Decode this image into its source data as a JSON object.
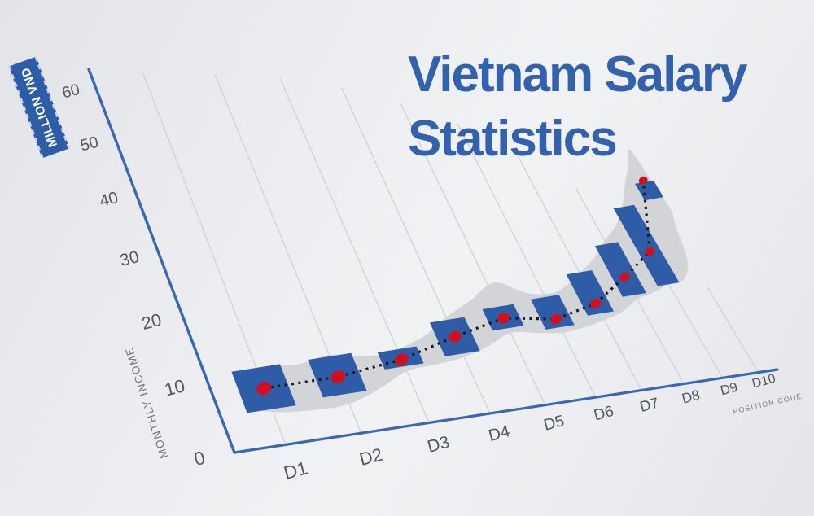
{
  "title": {
    "line1": "Vietnam Salary",
    "line2": "Statistics"
  },
  "axes": {
    "y": {
      "ribbon": "MILLION VND",
      "title": "MONTHLY INCOME"
    },
    "x": {
      "title": "POSITION CODE"
    }
  },
  "colors": {
    "background": "#eceef1",
    "title": "#3361ad",
    "axis": "#3b67b0",
    "grid": "#cfd2d6",
    "band": "#d2d4d7",
    "bar": "#2e5ca6",
    "dot": "#d2101c",
    "dotted_line": "#17191c",
    "tick_text": "#55585c",
    "ribbon_bg": "#2e5da8",
    "ribbon_text": "#ffffff",
    "axis_title_text": "#73767a"
  },
  "chart_data": {
    "type": "line",
    "title": "Vietnam Salary Statistics",
    "xlabel": "POSITION CODE",
    "ylabel": "MONTHLY INCOME",
    "unit": "MILLION VND",
    "categories": [
      "D1",
      "D2",
      "D3",
      "D4",
      "D5",
      "D6",
      "D7",
      "D8",
      "D9",
      "D10"
    ],
    "values": [
      8,
      8,
      9,
      11,
      12.5,
      11.2,
      12.5,
      15.5,
      18.5,
      29
    ],
    "range_low": [
      5,
      5.5,
      8,
      8.5,
      11,
      10,
      11,
      12.8,
      13.5,
      26
    ],
    "range_high": [
      11,
      11,
      10.5,
      13.5,
      14.2,
      14.5,
      17.2,
      20.6,
      25.6,
      28.7
    ],
    "yticks": [
      0,
      10,
      20,
      30,
      40,
      50,
      60
    ],
    "ylim": [
      0,
      63
    ],
    "grid": "vertical-per-category, 3d-perspective",
    "legend": "none",
    "band_top": [
      [
        0.8,
        9.8
      ],
      [
        1.0,
        10.9
      ],
      [
        1.55,
        10.6
      ],
      [
        2.0,
        11.2
      ],
      [
        2.55,
        10.2
      ],
      [
        3.0,
        10.5
      ],
      [
        3.55,
        11.9
      ],
      [
        4.0,
        13.9
      ],
      [
        4.55,
        15.7
      ],
      [
        5.15,
        17.7
      ],
      [
        5.7,
        15.4
      ],
      [
        6.3,
        15.0
      ],
      [
        7.0,
        17.1
      ],
      [
        7.55,
        19.0
      ],
      [
        8.0,
        21.1
      ],
      [
        8.55,
        23.3
      ],
      [
        9.0,
        26.0
      ],
      [
        9.45,
        29.3
      ],
      [
        9.8,
        31.5
      ],
      [
        10.15,
        34.0
      ],
      [
        10.25,
        28.0
      ],
      [
        10.3,
        24.0
      ]
    ],
    "band_bottom": [
      [
        0.8,
        5.8
      ],
      [
        1.0,
        4.6
      ],
      [
        1.5,
        4.0
      ],
      [
        2.0,
        4.1
      ],
      [
        2.5,
        5.5
      ],
      [
        3.0,
        7.3
      ],
      [
        3.5,
        7.6
      ],
      [
        4.0,
        8.0
      ],
      [
        4.5,
        9.0
      ],
      [
        5.0,
        10.3
      ],
      [
        5.5,
        9.7
      ],
      [
        6.0,
        9.2
      ],
      [
        6.5,
        9.5
      ],
      [
        7.0,
        10.0
      ],
      [
        7.5,
        10.8
      ],
      [
        8.0,
        12.1
      ],
      [
        8.5,
        12.7
      ],
      [
        9.0,
        13.5
      ],
      [
        9.5,
        13.9
      ],
      [
        9.9,
        16.5
      ],
      [
        10.15,
        21.5
      ]
    ]
  }
}
